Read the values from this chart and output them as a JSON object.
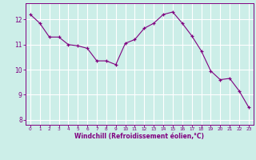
{
  "x": [
    0,
    1,
    2,
    3,
    4,
    5,
    6,
    7,
    8,
    9,
    10,
    11,
    12,
    13,
    14,
    15,
    16,
    17,
    18,
    19,
    20,
    21,
    22,
    23
  ],
  "y": [
    12.2,
    11.85,
    11.3,
    11.3,
    11.0,
    10.95,
    10.85,
    10.35,
    10.35,
    10.2,
    11.05,
    11.2,
    11.65,
    11.85,
    12.2,
    12.3,
    11.85,
    11.35,
    10.75,
    9.95,
    9.6,
    9.65,
    9.15,
    8.5
  ],
  "line_color": "#800080",
  "marker": "+",
  "bg_color": "#cceee8",
  "grid_color": "#ffffff",
  "xlabel": "Windchill (Refroidissement éolien,°C)",
  "ylabel": "",
  "xlim": [
    -0.5,
    23.5
  ],
  "ylim": [
    7.8,
    12.65
  ],
  "yticks": [
    8,
    9,
    10,
    11,
    12
  ],
  "xticks": [
    0,
    1,
    2,
    3,
    4,
    5,
    6,
    7,
    8,
    9,
    10,
    11,
    12,
    13,
    14,
    15,
    16,
    17,
    18,
    19,
    20,
    21,
    22,
    23
  ],
  "tick_color": "#800080",
  "label_color": "#800080",
  "spine_color": "#800080"
}
